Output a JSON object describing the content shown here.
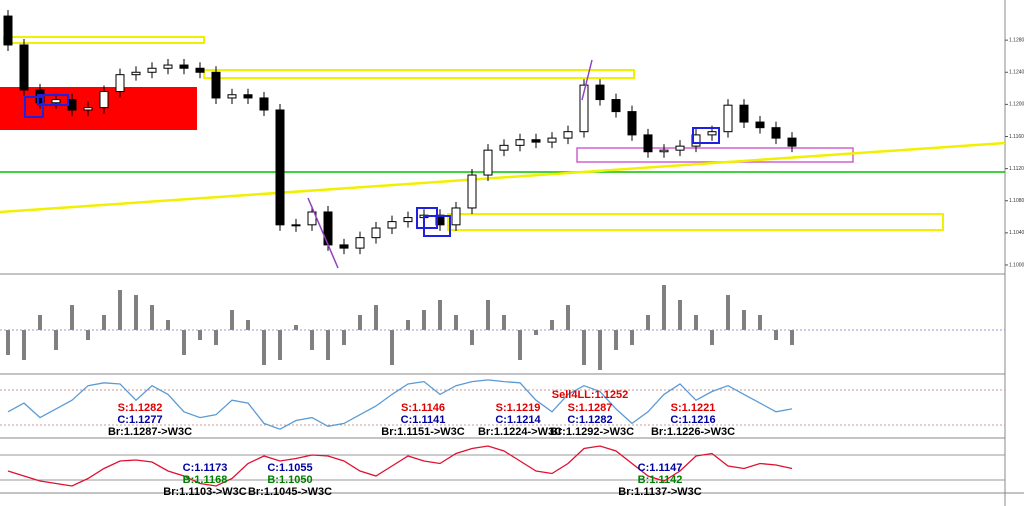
{
  "chart_data": {
    "type": "candlestick",
    "ylim": [
      1.099,
      1.133
    ],
    "yticks": [
      {
        "value": 1.128,
        "label": "1.12800"
      },
      {
        "value": 1.124,
        "label": "1.12400"
      },
      {
        "value": 1.12,
        "label": "1.12000"
      },
      {
        "value": 1.116,
        "label": "1.11600"
      },
      {
        "value": 1.112,
        "label": "1.11200"
      },
      {
        "value": 1.108,
        "label": "1.10800"
      },
      {
        "value": 1.104,
        "label": "1.10400"
      },
      {
        "value": 1.1,
        "label": "1.10000"
      }
    ],
    "open0": 1.131,
    "close": [
      1.1274,
      1.1218,
      1.1202,
      1.1206,
      1.1193,
      1.1196,
      1.1216,
      1.1237,
      1.124,
      1.1245,
      1.1249,
      1.1245,
      1.124,
      1.1208,
      1.1212,
      1.1208,
      1.1193,
      1.105,
      1.105,
      1.1066,
      1.1025,
      1.1021,
      1.1034,
      1.1046,
      1.1054,
      1.1059,
      1.1062,
      1.105,
      1.1071,
      1.1112,
      1.1143,
      1.1149,
      1.1156,
      1.1153,
      1.1158,
      1.1166,
      1.1224,
      1.1206,
      1.1191,
      1.1162,
      1.1141,
      1.1143,
      1.1148,
      1.1162,
      1.1166,
      1.1199,
      1.1178,
      1.1171,
      1.1158,
      1.1148
    ],
    "histogram": {
      "color": "#808080",
      "ylim": [
        -1,
        1
      ],
      "values": [
        -0.5,
        -0.6,
        0.3,
        -0.4,
        0.5,
        -0.2,
        0.3,
        0.8,
        0.7,
        0.5,
        0.2,
        -0.5,
        -0.2,
        -0.3,
        0.4,
        0.2,
        -0.7,
        -0.6,
        0.1,
        -0.4,
        -0.6,
        -0.3,
        0.3,
        0.5,
        -0.7,
        0.2,
        0.4,
        0.6,
        0.3,
        -0.3,
        0.6,
        0.3,
        -0.6,
        -0.1,
        0.2,
        0.5,
        -0.7,
        -0.8,
        -0.4,
        -0.3,
        0.3,
        0.9,
        0.6,
        0.3,
        -0.3,
        0.7,
        0.4,
        0.3,
        -0.2,
        -0.3
      ]
    },
    "rsi": {
      "color": "#5b9bd5",
      "ylim": [
        0,
        100
      ],
      "values": [
        40,
        55,
        30,
        45,
        60,
        85,
        90,
        88,
        60,
        85,
        70,
        40,
        30,
        35,
        60,
        55,
        20,
        10,
        25,
        30,
        15,
        20,
        35,
        50,
        70,
        88,
        92,
        70,
        85,
        92,
        95,
        92,
        90,
        60,
        40,
        70,
        85,
        75,
        45,
        20,
        40,
        70,
        88,
        60,
        75,
        85,
        70,
        55,
        40,
        45
      ]
    },
    "oscillator": {
      "color": "#e01030",
      "ylim": [
        0,
        100
      ],
      "values": [
        40,
        30,
        20,
        15,
        10,
        25,
        45,
        60,
        62,
        58,
        40,
        30,
        15,
        10,
        25,
        55,
        70,
        60,
        65,
        72,
        70,
        60,
        40,
        30,
        50,
        70,
        60,
        55,
        75,
        85,
        90,
        80,
        60,
        40,
        35,
        55,
        85,
        90,
        80,
        55,
        30,
        20,
        40,
        70,
        75,
        50,
        45,
        55,
        52,
        45
      ]
    },
    "annotations": [
      "S:1.1282",
      "C:1.1277",
      "Br:1.1287->W3C",
      "S:1.1146",
      "C:1.1141",
      "Br:1.1151->W3C",
      "Sell4LL:1.1252",
      "S:1.1219",
      "S:1.1287",
      "C:1.1214",
      "C:1.1282",
      "Br:1.1224->W3C",
      "Br:1.1292->W3C",
      "S:1.1221",
      "C:1.1216",
      "Br:1.1226->W3C",
      "C:1.1173",
      "B:1.1168",
      "Br:1.1103->W3C",
      "C:1.1055",
      "B:1.1050",
      "Br:1.1045->W3C",
      "C:1.1147",
      "B:1.1142",
      "Br:1.1137->W3C"
    ]
  }
}
